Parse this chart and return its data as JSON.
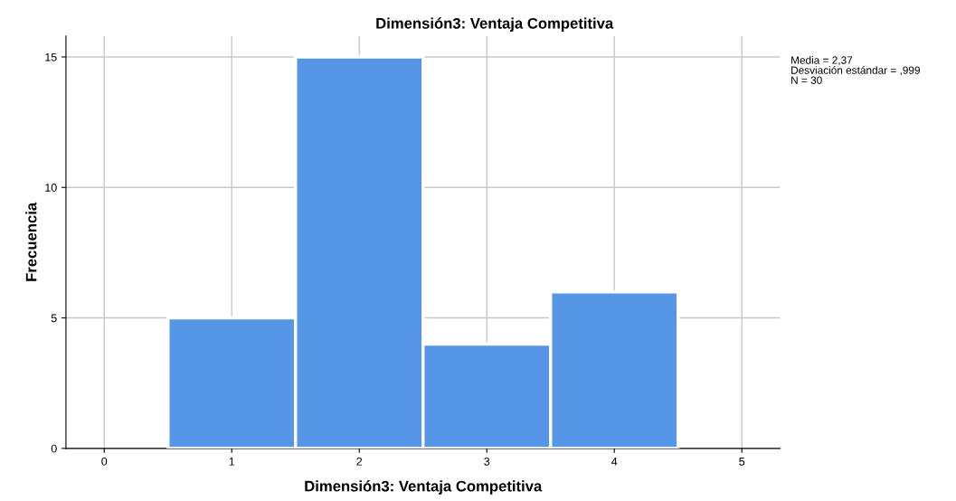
{
  "chart_data": {
    "type": "histogram",
    "title": "Dimensión3: Ventaja Competitiva",
    "xlabel": "Dimensión3: Ventaja Competitiva",
    "ylabel": "Frecuencia",
    "bins": [
      0.5,
      1.5,
      2.5,
      3.5,
      4.5
    ],
    "values": [
      5,
      15,
      4,
      6
    ],
    "color": "#5596e6",
    "xlim": [
      -0.3,
      5.3
    ],
    "xticks": [
      0,
      1,
      2,
      3,
      4,
      5
    ],
    "ylim": [
      0,
      15.8
    ],
    "yticks": [
      0,
      5,
      10,
      15
    ],
    "grid": true,
    "annotations": [
      "Media = 2,37",
      "Desviación estándar = ,999",
      "N = 30"
    ]
  }
}
